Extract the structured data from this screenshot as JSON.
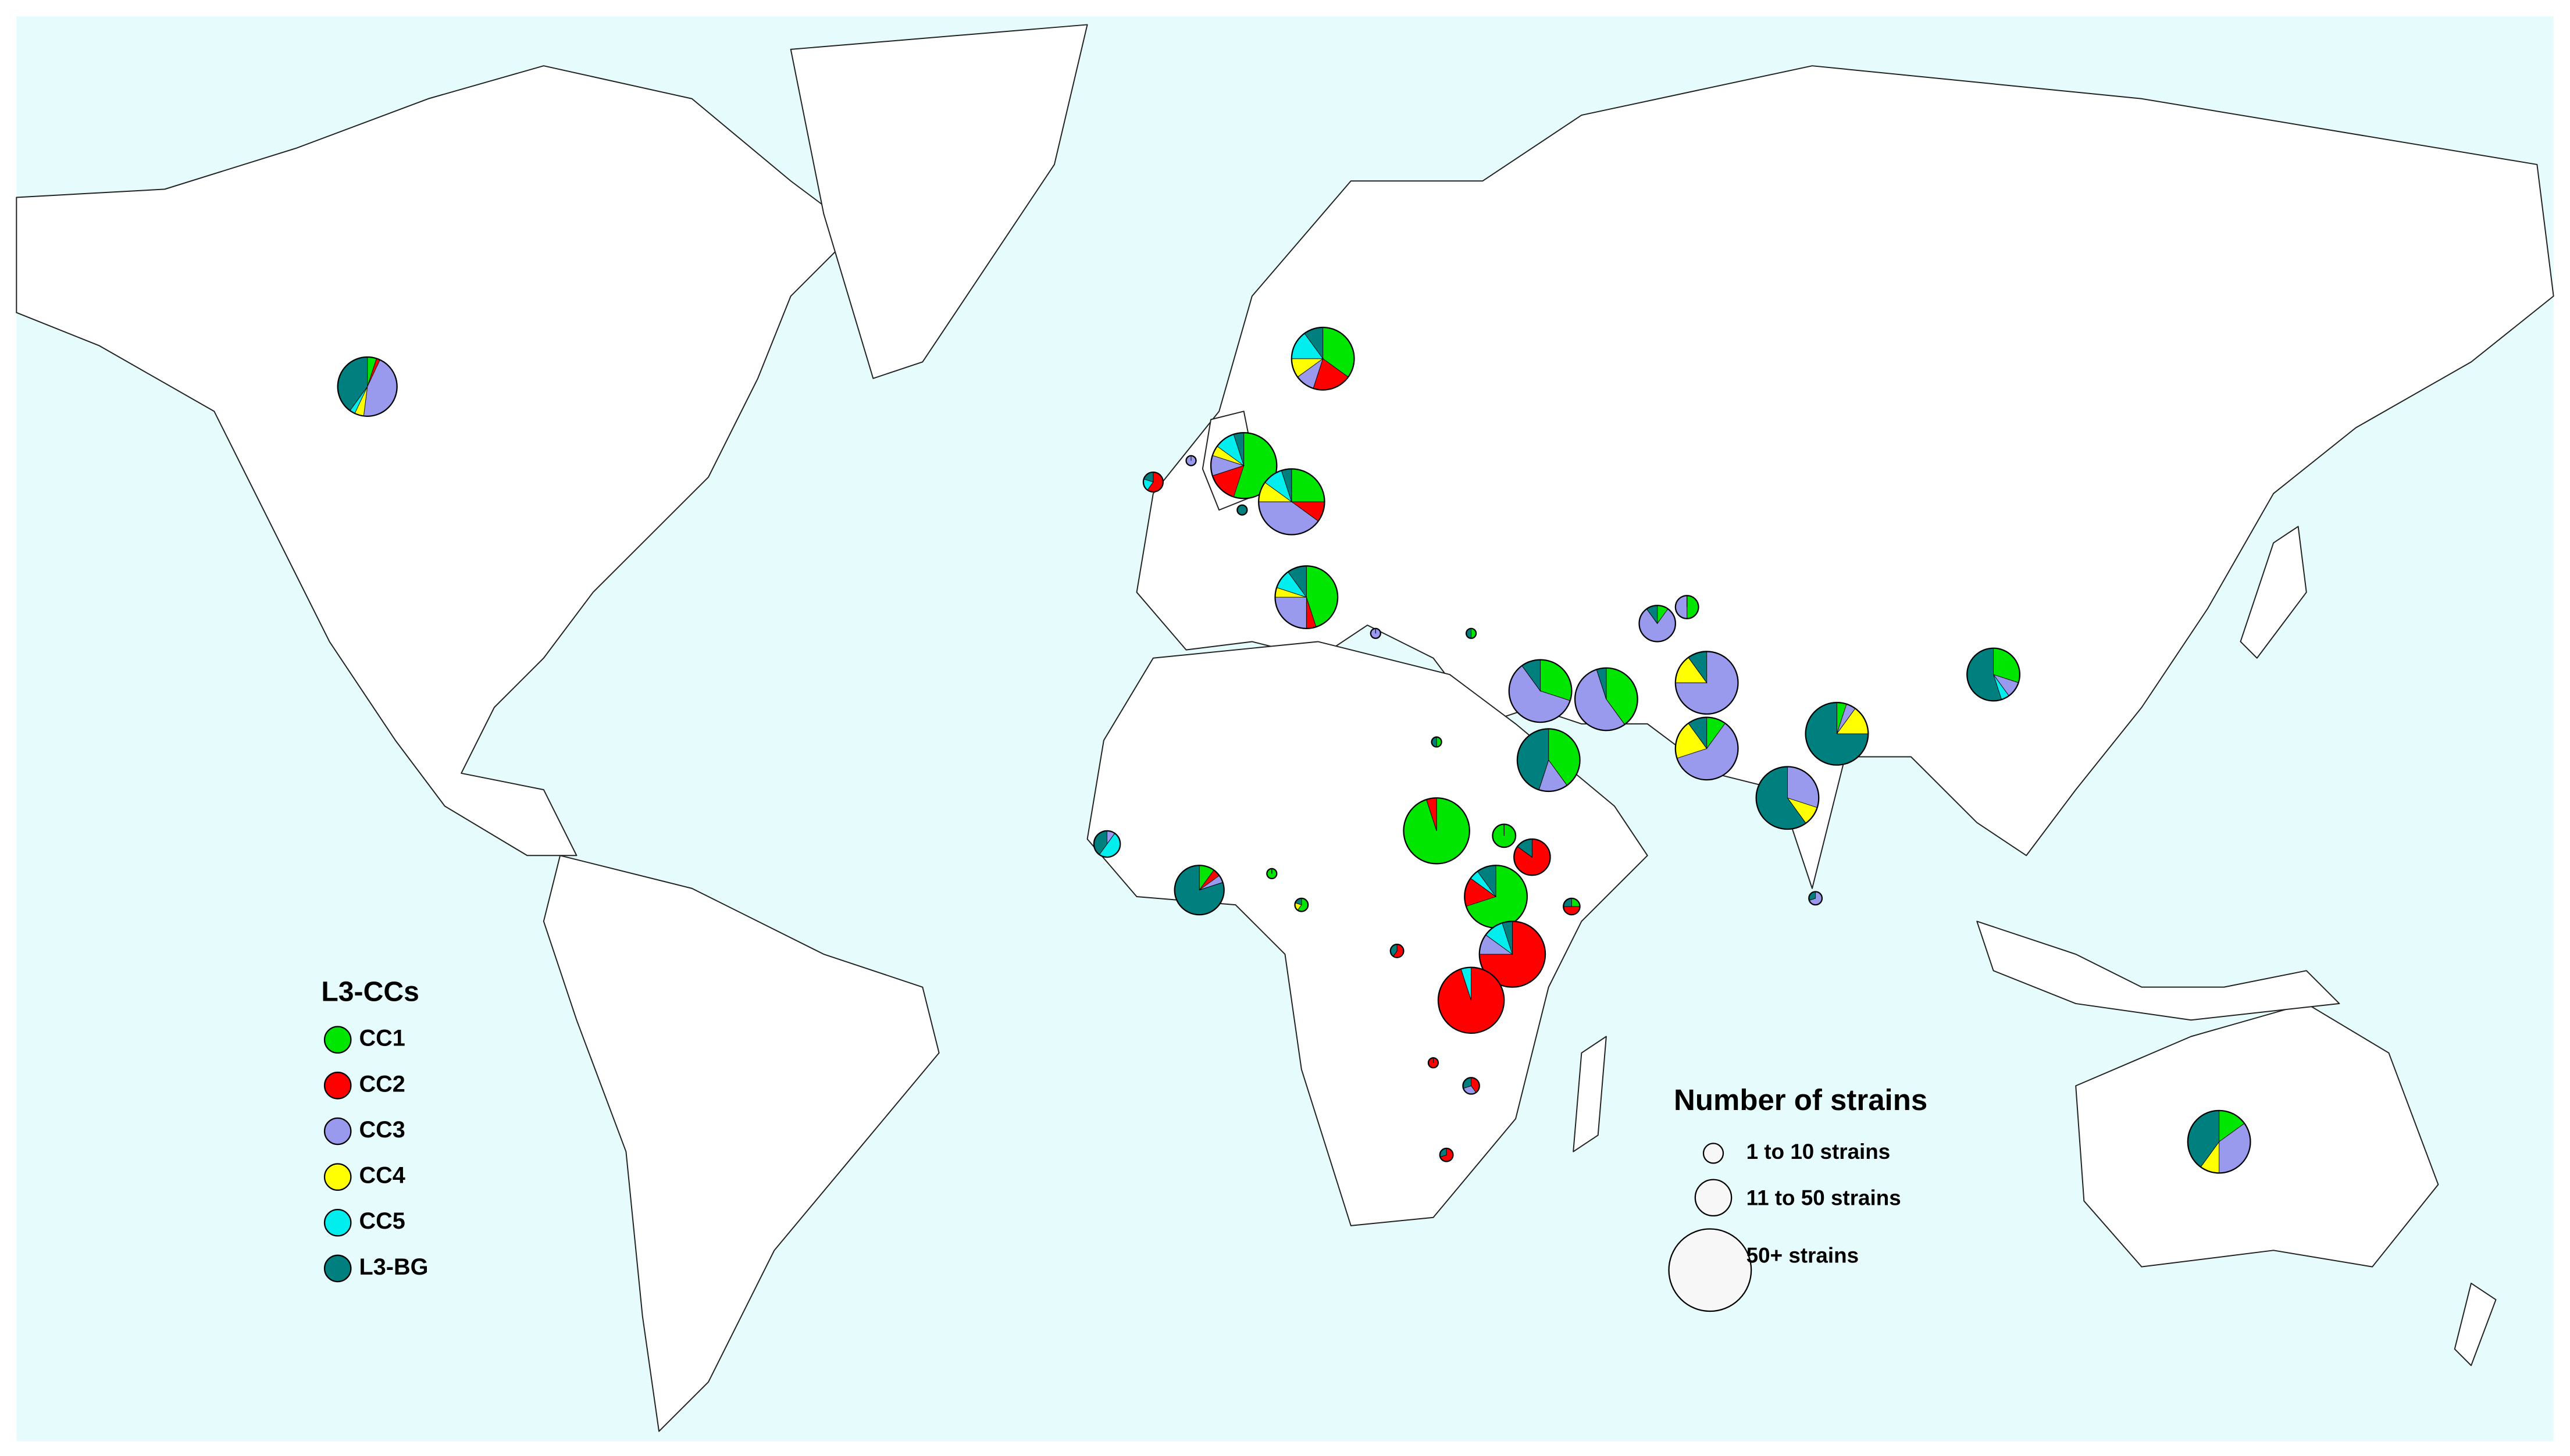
{
  "legend": {
    "title": "L3-CCs",
    "items": [
      {
        "label": "CC1",
        "color": "#00e600"
      },
      {
        "label": "CC2",
        "color": "#ff0000"
      },
      {
        "label": "CC3",
        "color": "#9999ee"
      },
      {
        "label": "CC4",
        "color": "#ffff00"
      },
      {
        "label": "CC5",
        "color": "#00eeee"
      },
      {
        "label": "L3-BG",
        "color": "#007f7f"
      }
    ]
  },
  "size_legend": {
    "title": "Number of strains",
    "items": [
      "1 to 10 strains",
      "11 to 50 strains",
      "50+ strains"
    ]
  },
  "pies": [
    {
      "values": [
        5,
        2,
        45,
        5,
        3,
        40
      ]
    },
    {
      "values": [
        35,
        20,
        10,
        10,
        15,
        10
      ]
    },
    {
      "values": [
        55,
        15,
        10,
        5,
        10,
        5
      ]
    },
    {
      "values": [
        0,
        60,
        0,
        0,
        20,
        20
      ]
    },
    {
      "values": [
        0,
        0,
        100,
        0,
        0,
        0
      ]
    },
    {
      "values": [
        0,
        0,
        0,
        0,
        0,
        100
      ]
    },
    {
      "values": [
        25,
        10,
        40,
        10,
        10,
        5
      ]
    },
    {
      "values": [
        45,
        5,
        25,
        5,
        10,
        10
      ]
    },
    {
      "values": [
        0,
        0,
        100,
        0,
        0,
        0
      ]
    },
    {
      "values": [
        50,
        0,
        0,
        0,
        0,
        50
      ]
    },
    {
      "values": [
        10,
        0,
        80,
        0,
        0,
        10
      ]
    },
    {
      "values": [
        50,
        0,
        50,
        0,
        0,
        0
      ]
    },
    {
      "values": [
        30,
        0,
        60,
        0,
        0,
        10
      ]
    },
    {
      "values": [
        40,
        0,
        55,
        0,
        0,
        5
      ]
    },
    {
      "values": [
        0,
        0,
        75,
        15,
        0,
        10
      ]
    },
    {
      "values": [
        40,
        0,
        15,
        0,
        0,
        45
      ]
    },
    {
      "values": [
        10,
        0,
        60,
        20,
        0,
        10
      ]
    },
    {
      "values": [
        5,
        0,
        5,
        15,
        0,
        75
      ]
    },
    {
      "values": [
        0,
        0,
        30,
        10,
        0,
        60
      ]
    },
    {
      "values": [
        30,
        0,
        10,
        0,
        5,
        55
      ]
    },
    {
      "values": [
        50,
        0,
        0,
        0,
        0,
        50
      ]
    },
    {
      "values": [
        95,
        5,
        0,
        0,
        0,
        0
      ]
    },
    {
      "values": [
        100,
        0,
        0,
        0,
        0,
        0
      ]
    },
    {
      "values": [
        0,
        85,
        0,
        0,
        0,
        15
      ]
    },
    {
      "values": [
        70,
        15,
        0,
        0,
        5,
        10
      ]
    },
    {
      "values": [
        0,
        75,
        10,
        0,
        10,
        5
      ]
    },
    {
      "values": [
        0,
        95,
        0,
        0,
        5,
        0
      ]
    },
    {
      "values": [
        25,
        50,
        0,
        0,
        0,
        25
      ]
    },
    {
      "values": [
        0,
        0,
        10,
        0,
        50,
        40
      ]
    },
    {
      "values": [
        10,
        5,
        5,
        0,
        0,
        80
      ]
    },
    {
      "values": [
        100,
        0,
        0,
        0,
        0,
        0
      ]
    },
    {
      "values": [
        60,
        0,
        0,
        20,
        0,
        20
      ]
    },
    {
      "values": [
        0,
        60,
        0,
        0,
        0,
        40
      ]
    },
    {
      "values": [
        0,
        100,
        0,
        0,
        0,
        0
      ]
    },
    {
      "values": [
        0,
        40,
        30,
        0,
        0,
        30
      ]
    },
    {
      "values": [
        0,
        70,
        0,
        0,
        0,
        30
      ]
    },
    {
      "values": [
        0,
        0,
        70,
        0,
        0,
        30
      ]
    },
    {
      "values": [
        15,
        0,
        35,
        10,
        0,
        40
      ]
    }
  ]
}
